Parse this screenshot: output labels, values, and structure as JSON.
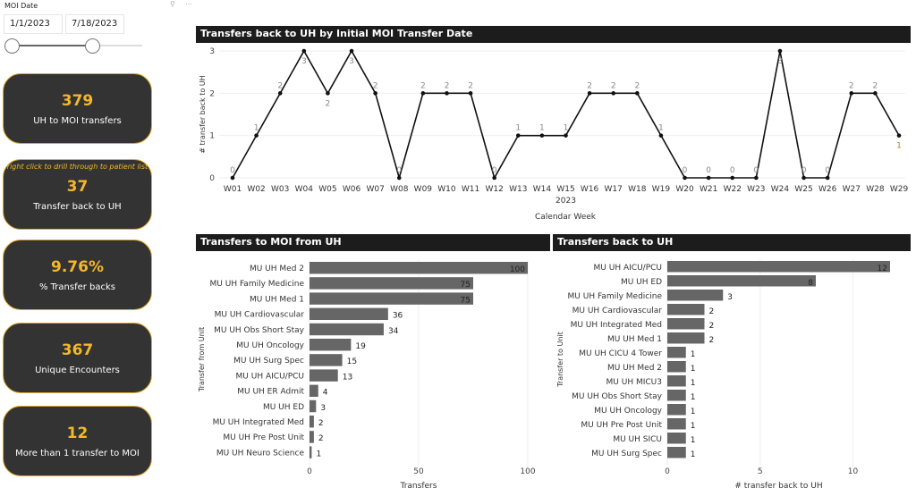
{
  "slicer": {
    "label": "MOI Date",
    "start": "1/1/2023",
    "end": "7/18/2023",
    "range_fraction": [
      0,
      0.6
    ]
  },
  "cards": [
    {
      "value": "379",
      "label": "UH to MOI transfers"
    },
    {
      "hint": "right click to drill through to patient list",
      "value": "37",
      "label": "Transfer back to UH"
    },
    {
      "value": "9.76%",
      "label": "% Transfer backs"
    },
    {
      "value": "367",
      "label": "Unique Encounters"
    },
    {
      "value": "12",
      "label": "More than 1 transfer to MOI"
    }
  ],
  "colors": {
    "card_bg": "#333333",
    "accent": "#f5b72a",
    "bar": "#666666",
    "title_bar": "#1c1c1c"
  },
  "chart_data": [
    {
      "type": "line",
      "title": "Transfers back to UH by Initial MOI Transfer Date",
      "xlabel": "Calendar Week",
      "xsublabel": "2023",
      "ylabel": "# transfer back to UH",
      "ylim": [
        0,
        3
      ],
      "yticks": [
        0,
        1,
        2,
        3
      ],
      "categories": [
        "W01",
        "W02",
        "W03",
        "W04",
        "W05",
        "W06",
        "W07",
        "W08",
        "W09",
        "W10",
        "W11",
        "W12",
        "W13",
        "W14",
        "W15",
        "W16",
        "W17",
        "W18",
        "W19",
        "W20",
        "W21",
        "W22",
        "W23",
        "W24",
        "W25",
        "W26",
        "W27",
        "W28",
        "W29"
      ],
      "values": [
        0,
        1,
        2,
        3,
        2,
        3,
        2,
        0,
        2,
        2,
        2,
        0,
        1,
        1,
        1,
        2,
        2,
        2,
        1,
        0,
        0,
        0,
        0,
        3,
        0,
        0,
        2,
        2,
        1
      ]
    },
    {
      "type": "bar",
      "title": "Transfers to MOI from UH",
      "xlabel": "Transfers",
      "ylabel": "Transfer from Unit",
      "xlim": [
        0,
        100
      ],
      "xticks": [
        0,
        50,
        100
      ],
      "categories": [
        "MU UH Med 2",
        "MU UH Family Medicine",
        "MU UH Med 1",
        "MU UH Cardiovascular",
        "MU UH Obs Short Stay",
        "MU UH Oncology",
        "MU UH Surg Spec",
        "MU UH AICU/PCU",
        "MU UH ER Admit",
        "MU UH ED",
        "MU UH Integrated Med",
        "MU UH Pre Post Unit",
        "MU UH Neuro Science"
      ],
      "values": [
        100,
        75,
        75,
        36,
        34,
        19,
        15,
        13,
        4,
        3,
        2,
        2,
        1
      ]
    },
    {
      "type": "bar",
      "title": "Transfers back to UH",
      "xlabel": "# transfer back to UH",
      "ylabel": "Transfer to Unit",
      "xlim": [
        0,
        12
      ],
      "xticks": [
        0,
        5,
        10
      ],
      "categories": [
        "MU UH AICU/PCU",
        "MU UH ED",
        "MU UH Family Medicine",
        "MU UH Cardiovascular",
        "MU UH Integrated Med",
        "MU UH Med 1",
        "MU UH CICU 4 Tower",
        "MU UH Med 2",
        "MU UH MICU3",
        "MU UH Obs Short Stay",
        "MU UH Oncology",
        "MU UH Pre Post Unit",
        "MU UH SICU",
        "MU UH Surg Spec"
      ],
      "values": [
        12,
        8,
        3,
        2,
        2,
        2,
        1,
        1,
        1,
        1,
        1,
        1,
        1,
        1
      ]
    }
  ]
}
